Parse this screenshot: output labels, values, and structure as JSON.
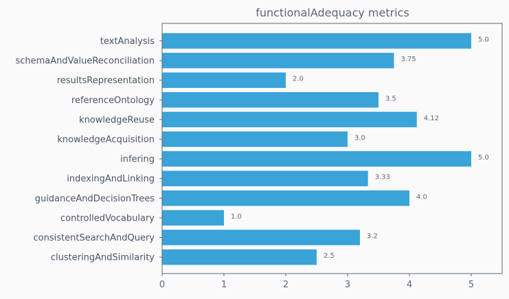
{
  "chart_data": {
    "type": "bar",
    "orientation": "horizontal",
    "title": "functionalAdequacy metrics",
    "xlabel": "",
    "ylabel": "",
    "xlim": [
      0,
      5.5
    ],
    "xticks": [
      0,
      1,
      2,
      3,
      4,
      5
    ],
    "grid": false,
    "bar_color": "#3aa3d8",
    "categories": [
      "textAnalysis",
      "schemaAndValueReconciliation",
      "resultsRepresentation",
      "referenceOntology",
      "knowledgeReuse",
      "knowledgeAcquisition",
      "infering",
      "indexingAndLinking",
      "guidanceAndDecisionTrees",
      "controlledVocabulary",
      "consistentSearchAndQuery",
      "clusteringAndSimilarity"
    ],
    "values": [
      5.0,
      3.75,
      2.0,
      3.5,
      4.12,
      3.0,
      5.0,
      3.33,
      4.0,
      1.0,
      3.2,
      2.5
    ],
    "value_labels": [
      "5.0",
      "3.75",
      "2.0",
      "3.5",
      "4.12",
      "3.0",
      "5.0",
      "3.33",
      "4.0",
      "1.0",
      "3.2",
      "2.5"
    ]
  }
}
